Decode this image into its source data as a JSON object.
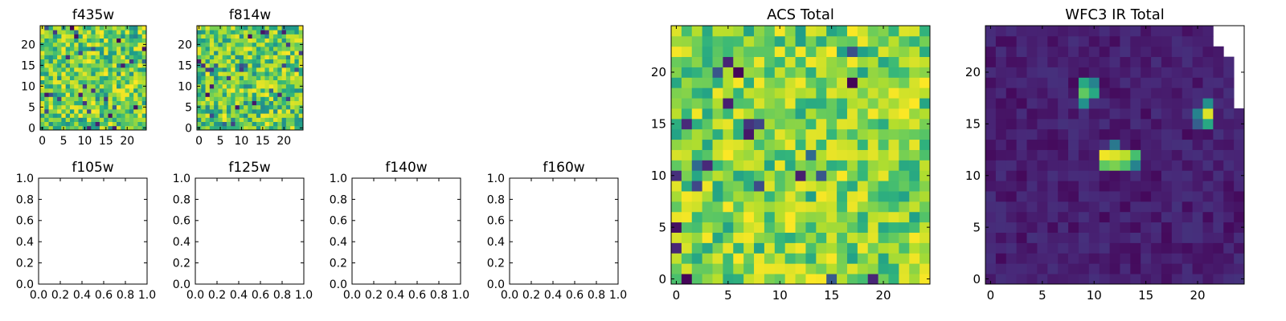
{
  "chart_data": [
    {
      "id": "f435w",
      "type": "heatmap",
      "title": "f435w",
      "size": 25,
      "colormap": "viridis",
      "value_range": [
        0.45,
        1.0
      ],
      "seed": 11,
      "xticks": [
        0,
        5,
        10,
        15,
        20
      ],
      "yticks": [
        0,
        5,
        10,
        15,
        20
      ],
      "xlim": [
        -0.5,
        24.5
      ],
      "ylim": [
        -0.5,
        24.5
      ]
    },
    {
      "id": "f814w",
      "type": "heatmap",
      "title": "f814w",
      "size": 25,
      "colormap": "viridis",
      "value_range": [
        0.45,
        1.0
      ],
      "seed": 23,
      "xticks": [
        0,
        5,
        10,
        15,
        20
      ],
      "yticks": [
        0,
        5,
        10,
        15,
        20
      ],
      "xlim": [
        -0.5,
        24.5
      ],
      "ylim": [
        -0.5,
        24.5
      ]
    },
    {
      "id": "f105w",
      "type": "empty",
      "title": "f105w",
      "xlim": [
        0,
        1
      ],
      "ylim": [
        0,
        1
      ],
      "xticks": [
        "0.0",
        "0.2",
        "0.4",
        "0.6",
        "0.8",
        "1.0"
      ],
      "yticks": [
        "0.0",
        "0.2",
        "0.4",
        "0.6",
        "0.8",
        "1.0"
      ]
    },
    {
      "id": "f125w",
      "type": "empty",
      "title": "f125w",
      "xlim": [
        0,
        1
      ],
      "ylim": [
        0,
        1
      ],
      "xticks": [
        "0.0",
        "0.2",
        "0.4",
        "0.6",
        "0.8",
        "1.0"
      ],
      "yticks": [
        "0.0",
        "0.2",
        "0.4",
        "0.6",
        "0.8",
        "1.0"
      ]
    },
    {
      "id": "f140w",
      "type": "empty",
      "title": "f140w",
      "xlim": [
        0,
        1
      ],
      "ylim": [
        0,
        1
      ],
      "xticks": [
        "0.0",
        "0.2",
        "0.4",
        "0.6",
        "0.8",
        "1.0"
      ],
      "yticks": [
        "0.0",
        "0.2",
        "0.4",
        "0.6",
        "0.8",
        "1.0"
      ]
    },
    {
      "id": "f160w",
      "type": "empty",
      "title": "f160w",
      "xlim": [
        0,
        1
      ],
      "ylim": [
        0,
        1
      ],
      "xticks": [
        "0.0",
        "0.2",
        "0.4",
        "0.6",
        "0.8",
        "1.0"
      ],
      "yticks": [
        "0.0",
        "0.2",
        "0.4",
        "0.6",
        "0.8",
        "1.0"
      ]
    },
    {
      "id": "acs_total",
      "type": "heatmap",
      "title": "ACS Total",
      "size": 25,
      "colormap": "viridis",
      "value_range": [
        0.55,
        1.0
      ],
      "seed": 37,
      "xticks": [
        0,
        5,
        10,
        15,
        20
      ],
      "yticks": [
        0,
        5,
        10,
        15,
        20
      ],
      "xlim": [
        -0.5,
        24.5
      ],
      "ylim": [
        -0.5,
        24.5
      ]
    },
    {
      "id": "wfc3_ir_total",
      "type": "heatmap",
      "title": "WFC3 IR Total",
      "size": 25,
      "colormap": "viridis",
      "value_range": [
        0.02,
        0.14
      ],
      "seed": 51,
      "xticks": [
        0,
        5,
        10,
        15,
        20
      ],
      "yticks": [
        0,
        5,
        10,
        15,
        20
      ],
      "xlim": [
        -0.5,
        24.5
      ],
      "ylim": [
        -0.5,
        24.5
      ],
      "sources": [
        {
          "x": 11,
          "y": 12,
          "value": 0.98
        },
        {
          "x": 12,
          "y": 12,
          "value": 0.95
        },
        {
          "x": 13,
          "y": 12,
          "value": 0.9
        },
        {
          "x": 14,
          "y": 12,
          "value": 0.7
        },
        {
          "x": 11,
          "y": 11,
          "value": 0.75
        },
        {
          "x": 12,
          "y": 11,
          "value": 0.8
        },
        {
          "x": 13,
          "y": 11,
          "value": 0.72
        },
        {
          "x": 14,
          "y": 11,
          "value": 0.45
        },
        {
          "x": 12,
          "y": 13,
          "value": 0.4
        },
        {
          "x": 9,
          "y": 19,
          "value": 0.6
        },
        {
          "x": 10,
          "y": 19,
          "value": 0.45
        },
        {
          "x": 9,
          "y": 18,
          "value": 0.75
        },
        {
          "x": 10,
          "y": 18,
          "value": 0.6
        },
        {
          "x": 9,
          "y": 17,
          "value": 0.5
        },
        {
          "x": 21,
          "y": 17,
          "value": 0.5
        },
        {
          "x": 21,
          "y": 16,
          "value": 0.95
        },
        {
          "x": 20,
          "y": 16,
          "value": 0.45
        },
        {
          "x": 21,
          "y": 15,
          "value": 0.6
        },
        {
          "x": 20,
          "y": 15,
          "value": 0.3
        }
      ],
      "masked": [
        {
          "x": 22,
          "y": 24
        },
        {
          "x": 23,
          "y": 24
        },
        {
          "x": 24,
          "y": 24
        },
        {
          "x": 22,
          "y": 23
        },
        {
          "x": 23,
          "y": 23
        },
        {
          "x": 24,
          "y": 23
        },
        {
          "x": 23,
          "y": 22
        },
        {
          "x": 24,
          "y": 22
        },
        {
          "x": 24,
          "y": 21
        },
        {
          "x": 24,
          "y": 20
        },
        {
          "x": 24,
          "y": 19
        },
        {
          "x": 24,
          "y": 18
        },
        {
          "x": 24,
          "y": 17
        }
      ]
    }
  ]
}
